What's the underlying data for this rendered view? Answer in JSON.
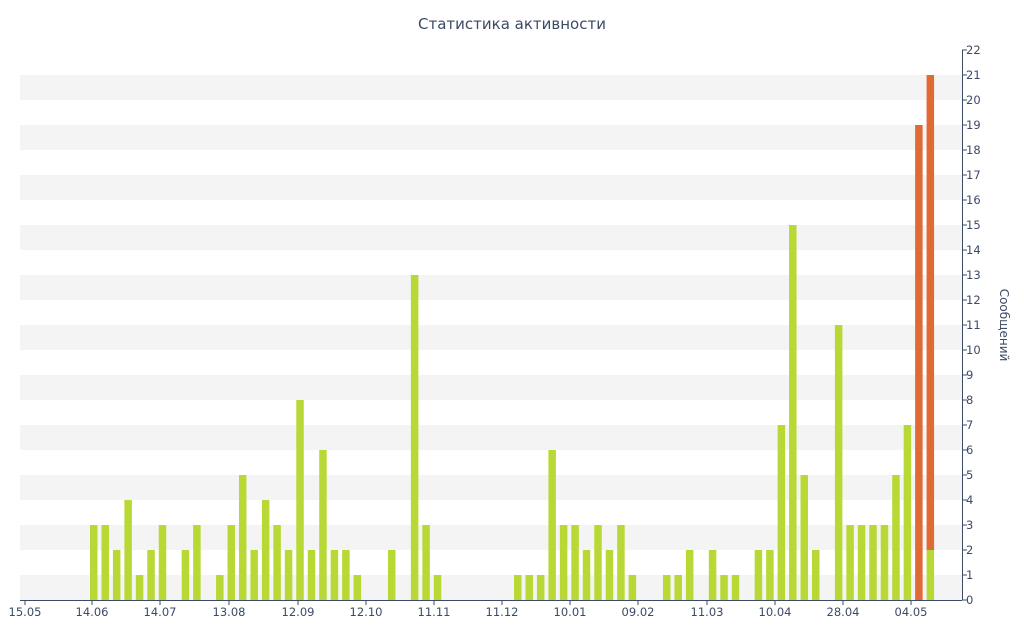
{
  "chart_data": {
    "type": "bar",
    "title": "Статистика активности",
    "ylabel": "Сообщений",
    "ylim": [
      0,
      22
    ],
    "y_ticks": [
      0,
      1,
      2,
      3,
      4,
      5,
      6,
      7,
      8,
      9,
      10,
      11,
      12,
      13,
      14,
      15,
      16,
      17,
      18,
      19,
      20,
      21,
      22
    ],
    "x_ticks": [
      "15.05",
      "14.06",
      "14.07",
      "13.08",
      "12.09",
      "12.10",
      "11.11",
      "11.12",
      "10.01",
      "09.02",
      "11.03",
      "10.04",
      "28.04",
      "04.05"
    ],
    "grid": "horizontal bands",
    "stacked": true,
    "series": [
      {
        "color": "#b8d935",
        "values": [
          3,
          3,
          2,
          4,
          1,
          2,
          3,
          0,
          2,
          3,
          0,
          1,
          3,
          5,
          2,
          4,
          3,
          2,
          8,
          2,
          6,
          2,
          2,
          1,
          0,
          0,
          2,
          0,
          13,
          3,
          1,
          0,
          0,
          0,
          0,
          0,
          0,
          1,
          1,
          1,
          6,
          3,
          3,
          2,
          3,
          2,
          3,
          1,
          0,
          0,
          1,
          1,
          2,
          0,
          2,
          1,
          1,
          0,
          2,
          2,
          7,
          15,
          5,
          2,
          0,
          11,
          3,
          3,
          3,
          3,
          5,
          7,
          0,
          2
        ]
      },
      {
        "color": "#e06a35",
        "values": [
          0,
          0,
          0,
          0,
          0,
          0,
          0,
          0,
          0,
          0,
          0,
          0,
          0,
          0,
          0,
          0,
          0,
          0,
          0,
          0,
          0,
          0,
          0,
          0,
          0,
          0,
          0,
          0,
          0,
          0,
          0,
          0,
          0,
          0,
          0,
          0,
          0,
          0,
          0,
          0,
          0,
          0,
          0,
          0,
          0,
          0,
          0,
          0,
          0,
          0,
          0,
          0,
          0,
          0,
          0,
          0,
          0,
          0,
          0,
          0,
          0,
          0,
          0,
          0,
          0,
          0,
          0,
          0,
          0,
          0,
          0,
          0,
          19,
          19
        ]
      }
    ]
  }
}
